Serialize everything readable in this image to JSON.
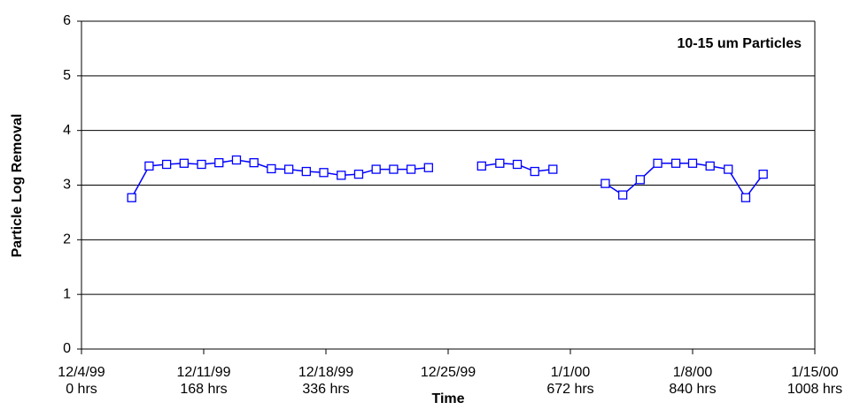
{
  "chart_data": {
    "type": "line",
    "annotation": "10-15 um Particles",
    "xlabel": "Time",
    "ylabel": "Particle Log Removal",
    "x": [
      69,
      93,
      117,
      141,
      165,
      189,
      213,
      237,
      261,
      285,
      309,
      333,
      357,
      381,
      405,
      429,
      453,
      477,
      501,
      525,
      550,
      575,
      599,
      623,
      648,
      672,
      696,
      720,
      744,
      768,
      792,
      817,
      840,
      864,
      889,
      913,
      937
    ],
    "series": [
      {
        "color": "#0000ff",
        "values": [
          2.77,
          3.35,
          3.38,
          3.4,
          3.38,
          3.41,
          3.46,
          3.41,
          3.3,
          3.29,
          3.25,
          3.23,
          3.18,
          3.2,
          3.29,
          3.29,
          3.29,
          3.32,
          null,
          null,
          3.35,
          3.4,
          3.38,
          3.25,
          3.29,
          null,
          null,
          3.03,
          2.82,
          3.1,
          3.4,
          3.4,
          3.4,
          3.35,
          3.29,
          2.77,
          3.2
        ]
      }
    ],
    "xlim": [
      0,
      1008
    ],
    "xticks": [
      {
        "value": 0,
        "label": "12/4/99",
        "hours": "0 hrs"
      },
      {
        "value": 168,
        "label": "12/11/99",
        "hours": "168 hrs"
      },
      {
        "value": 336,
        "label": "12/18/99",
        "hours": "336 hrs"
      },
      {
        "value": 504,
        "label": "12/25/99"
      },
      {
        "value": 672,
        "label": "1/1/00",
        "hours": "672 hrs"
      },
      {
        "value": 840,
        "label": "1/8/00",
        "hours": "840 hrs"
      },
      {
        "value": 1008,
        "label": "1/15/00",
        "hours": "1008 hrs"
      }
    ],
    "ylim": [
      0,
      6
    ],
    "yticks": [
      0,
      1,
      2,
      3,
      4,
      5,
      6
    ],
    "grid": true
  }
}
